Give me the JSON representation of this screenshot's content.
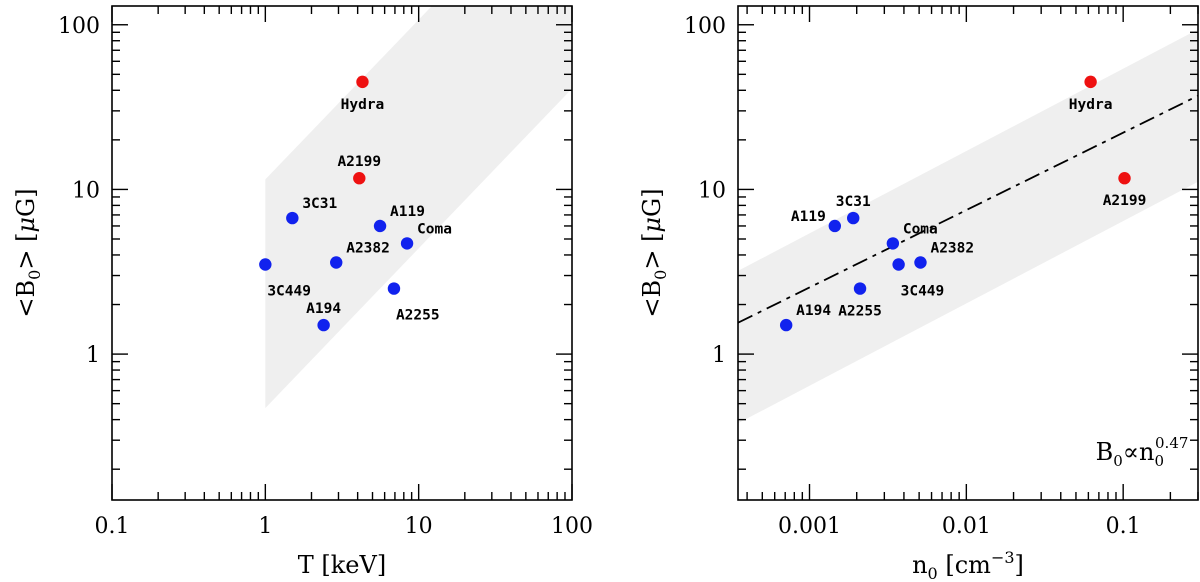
{
  "chart_data": [
    {
      "type": "scatter",
      "xscale": "log",
      "yscale": "log",
      "xlim": [
        0.1,
        100
      ],
      "ylim": [
        0.13,
        130
      ],
      "xticks": [
        {
          "v": 0.1,
          "label": "0.1"
        },
        {
          "v": 1,
          "label": "1"
        },
        {
          "v": 10,
          "label": "10"
        },
        {
          "v": 100,
          "label": "100"
        }
      ],
      "yticks": [
        {
          "v": 1,
          "label": "1"
        },
        {
          "v": 10,
          "label": "10"
        },
        {
          "v": 100,
          "label": "100"
        }
      ],
      "xlabel": "T [keV]",
      "ylabel": {
        "prefix": "<B",
        "sub": "0",
        "suffix": "> [",
        "greek": "μ",
        "unit": "G]"
      },
      "band": {
        "x0": 1,
        "x1": 130,
        "lower0": 0.47,
        "upper0": 11.5,
        "slope": 0.97
      },
      "points": [
        {
          "name": "Hydra",
          "x": 4.3,
          "y": 45,
          "color": "#ee1111",
          "label": "Hydra",
          "lpos": "below"
        },
        {
          "name": "A2199",
          "x": 4.1,
          "y": 11.7,
          "color": "#ee1111",
          "label": "A2199",
          "lpos": "above"
        },
        {
          "name": "3C31",
          "x": 1.5,
          "y": 6.7,
          "color": "#1122ee",
          "label": "3C31",
          "lpos": "above-right"
        },
        {
          "name": "A119",
          "x": 5.6,
          "y": 6.0,
          "color": "#1122ee",
          "label": "A119",
          "lpos": "above-right"
        },
        {
          "name": "Coma",
          "x": 8.4,
          "y": 4.7,
          "color": "#1122ee",
          "label": "Coma",
          "lpos": "above-right"
        },
        {
          "name": "A2382",
          "x": 2.9,
          "y": 3.6,
          "color": "#1122ee",
          "label": "A2382",
          "lpos": "above-right"
        },
        {
          "name": "3C449",
          "x": 1.0,
          "y": 3.5,
          "color": "#1122ee",
          "label": "3C449",
          "lpos": "below-right"
        },
        {
          "name": "A194",
          "x": 2.4,
          "y": 1.5,
          "color": "#1122ee",
          "label": "A194",
          "lpos": "above"
        },
        {
          "name": "A2255",
          "x": 6.9,
          "y": 2.5,
          "color": "#1122ee",
          "label": "A2255",
          "lpos": "below-right"
        }
      ]
    },
    {
      "type": "scatter",
      "xscale": "log",
      "yscale": "log",
      "xlim": [
        0.00035,
        0.3
      ],
      "ylim": [
        0.13,
        130
      ],
      "xticks": [
        {
          "v": 0.001,
          "label": "0.001"
        },
        {
          "v": 0.01,
          "label": "0.01"
        },
        {
          "v": 0.1,
          "label": "0.1"
        }
      ],
      "yticks": [
        {
          "v": 1,
          "label": "1"
        },
        {
          "v": 10,
          "label": "10"
        },
        {
          "v": 100,
          "label": "100"
        }
      ],
      "xlabel": {
        "base": "n",
        "sub": "0",
        "mid": " [cm",
        "sup": "−3",
        "end": "]"
      },
      "ylabel": {
        "prefix": "<B",
        "sub": "0",
        "suffix": "> [",
        "greek": "μ",
        "unit": "G]"
      },
      "annotation": {
        "b": "B",
        "bsub": "0",
        "prop": "∝",
        "n": "n",
        "nsub": "0",
        "exp": "0.47"
      },
      "fit": {
        "slope": 0.47,
        "anchor_x": 0.00035,
        "anchor_y": 1.55
      },
      "band": {
        "x0": 0.00035,
        "x1": 0.3,
        "lower0": 0.38,
        "upper0": 3.2,
        "slope": 0.5
      },
      "points": [
        {
          "name": "Hydra",
          "x": 0.062,
          "y": 45,
          "color": "#ee1111",
          "label": "Hydra",
          "lpos": "below"
        },
        {
          "name": "A2199",
          "x": 0.102,
          "y": 11.7,
          "color": "#ee1111",
          "label": "A2199",
          "lpos": "below"
        },
        {
          "name": "3C31",
          "x": 0.0019,
          "y": 6.7,
          "color": "#1122ee",
          "label": "3C31",
          "lpos": "above"
        },
        {
          "name": "A119",
          "x": 0.00145,
          "y": 6.0,
          "color": "#1122ee",
          "label": "A119",
          "lpos": "left"
        },
        {
          "name": "Coma",
          "x": 0.0034,
          "y": 4.7,
          "color": "#1122ee",
          "label": "Coma",
          "lpos": "above-right"
        },
        {
          "name": "A2382",
          "x": 0.0051,
          "y": 3.6,
          "color": "#1122ee",
          "label": "A2382",
          "lpos": "above-right"
        },
        {
          "name": "3C449",
          "x": 0.0037,
          "y": 3.5,
          "color": "#1122ee",
          "label": "3C449",
          "lpos": "below-right"
        },
        {
          "name": "A194",
          "x": 0.00071,
          "y": 1.5,
          "color": "#1122ee",
          "label": "A194",
          "lpos": "above-right"
        },
        {
          "name": "A2255",
          "x": 0.0021,
          "y": 2.5,
          "color": "#1122ee",
          "label": "A2255",
          "lpos": "below"
        }
      ]
    }
  ]
}
